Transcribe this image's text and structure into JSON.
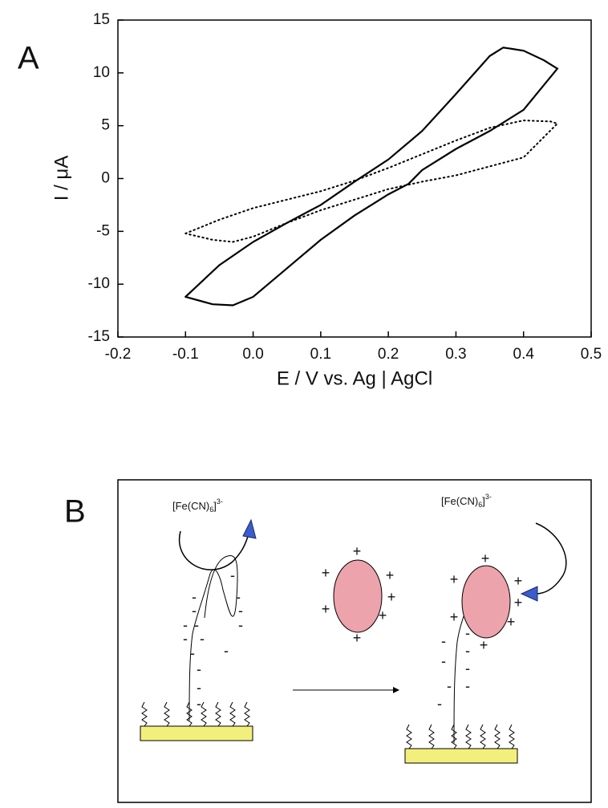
{
  "chart_data": {
    "type": "line",
    "xlabel": "E / V vs. Ag | AgCl",
    "ylabel": "I / μA",
    "xlim": [
      -0.2,
      0.5
    ],
    "ylim": [
      -15,
      15
    ],
    "xticks": [
      -0.2,
      -0.1,
      {
        "value": 0,
        "label": "0.0"
      },
      0.1,
      0.2,
      0.3,
      0.4,
      0.5
    ],
    "yticks": [
      -15,
      -10,
      -5,
      0,
      5,
      10,
      15
    ],
    "series": [
      {
        "color": "#000000",
        "style": "solid",
        "x": [
          -0.1,
          -0.05,
          0.0,
          0.05,
          0.1,
          0.15,
          0.2,
          0.25,
          0.3,
          0.35,
          0.37,
          0.4,
          0.43,
          0.45,
          0.4,
          0.35,
          0.3,
          0.25,
          0.23,
          0.2,
          0.15,
          0.1,
          0.05,
          0.0,
          -0.03,
          -0.06,
          -0.1
        ],
        "values": [
          -11.2,
          -8.2,
          -6,
          -4.2,
          -2.5,
          -0.3,
          1.8,
          4.5,
          8,
          11.6,
          12.4,
          12.1,
          11.2,
          10.4,
          6.5,
          4.5,
          2.8,
          0.8,
          -0.5,
          -1.5,
          -3.5,
          -5.8,
          -8.5,
          -11.2,
          -12,
          -11.9,
          -11.2
        ]
      },
      {
        "color": "#000000",
        "style": "dotted",
        "x": [
          -0.1,
          -0.05,
          0.0,
          0.05,
          0.1,
          0.15,
          0.2,
          0.25,
          0.3,
          0.35,
          0.4,
          0.44,
          0.45,
          0.4,
          0.3,
          0.25,
          0.2,
          0.15,
          0.1,
          0.05,
          0.0,
          -0.03,
          -0.06,
          -0.1
        ],
        "values": [
          -5.2,
          -3.9,
          -2.8,
          -2,
          -1.2,
          -0.2,
          1,
          2.3,
          3.6,
          4.8,
          5.5,
          5.4,
          5.2,
          2,
          0.3,
          -0.3,
          -1,
          -2,
          -3,
          -4.2,
          -5.5,
          -6,
          -5.8,
          -5.2
        ]
      }
    ]
  },
  "panels": {
    "a": "A",
    "b": "B"
  },
  "diagram": {
    "ions": [
      {
        "formula": "[Fe(CN)",
        "subscript": "6",
        "bracket": "]",
        "superscript": "3-"
      },
      {
        "formula": "[Fe(CN)",
        "subscript": "6",
        "bracket": "]",
        "superscript": "3-"
      }
    ],
    "positive_charge": "+",
    "negative_charge": "-"
  }
}
